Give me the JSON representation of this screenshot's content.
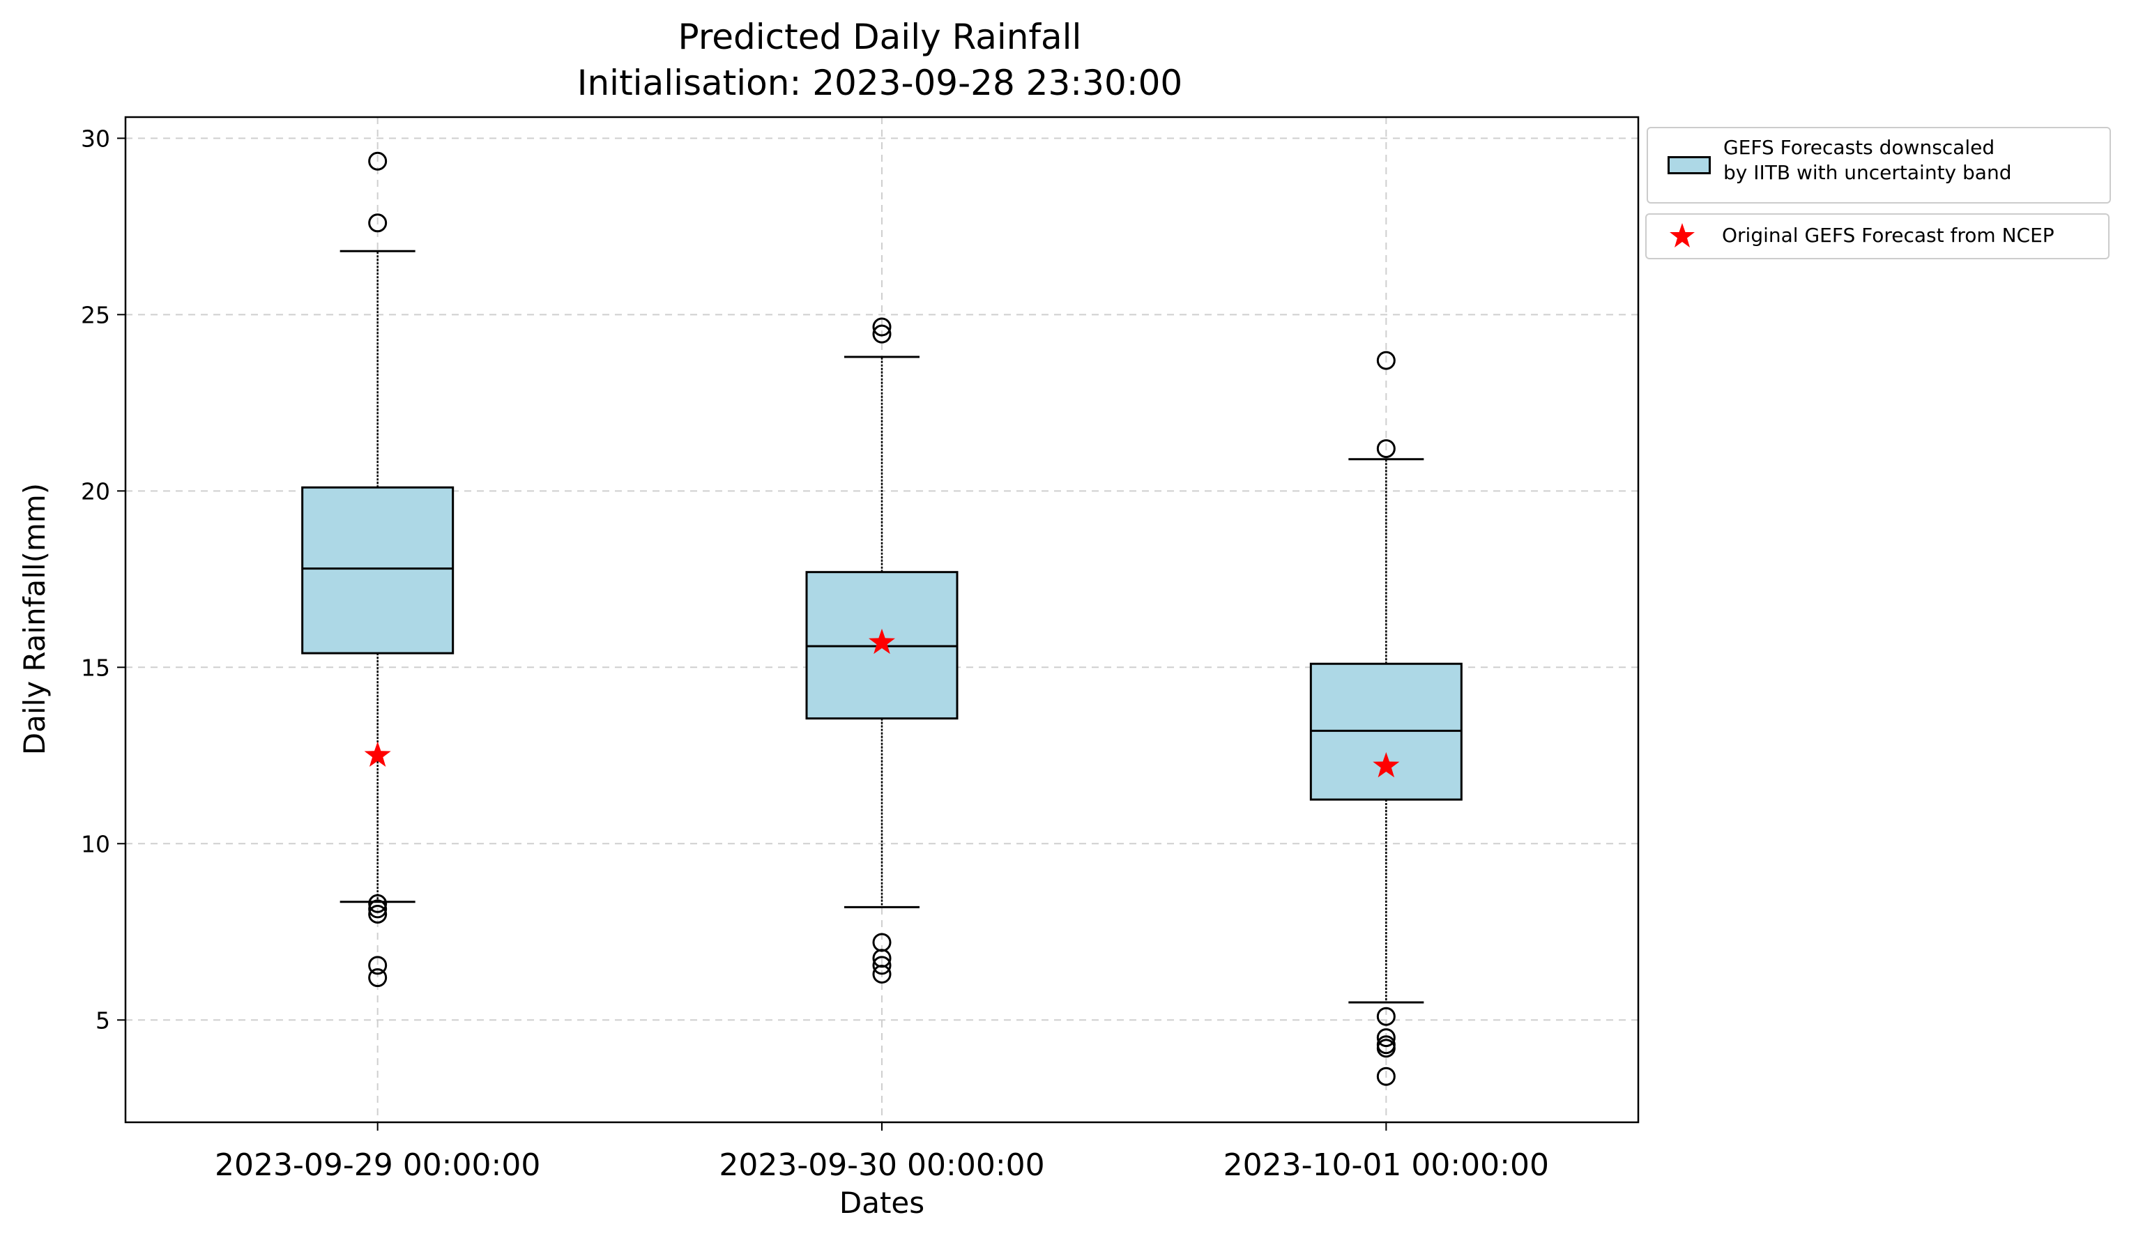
{
  "chart_data": {
    "type": "box",
    "title": "Predicted Daily Rainfall",
    "subtitle": "Initialisation: 2023-09-28 23:30:00",
    "xlabel": "Dates",
    "ylabel": "Daily Rainfall(mm)",
    "ylim": [
      2.1,
      30.6
    ],
    "yticks": [
      5,
      10,
      15,
      20,
      25,
      30
    ],
    "grid": true,
    "legend_placement": "outside upper right",
    "categories": [
      "2023-09-29 00:00:00",
      "2023-09-30 00:00:00",
      "2023-10-01 00:00:00"
    ],
    "series": [
      {
        "name": "GEFS Forecasts downscaled\nby IITB with uncertainty band",
        "color": "#add8e6",
        "boxes": [
          {
            "whisker_low": 8.35,
            "q1": 15.4,
            "median": 17.8,
            "q3": 20.1,
            "whisker_high": 26.8,
            "outliers": [
              29.35,
              27.6,
              8.3,
              8.15,
              8.0,
              6.55,
              6.2
            ]
          },
          {
            "whisker_low": 8.2,
            "q1": 13.55,
            "median": 15.6,
            "q3": 17.7,
            "whisker_high": 23.8,
            "outliers": [
              24.65,
              24.45,
              7.2,
              6.75,
              6.55,
              6.3
            ]
          },
          {
            "whisker_low": 5.5,
            "q1": 11.25,
            "median": 13.2,
            "q3": 15.1,
            "whisker_high": 20.9,
            "outliers": [
              23.7,
              21.2,
              5.1,
              4.5,
              4.3,
              4.2,
              3.4
            ]
          }
        ]
      },
      {
        "name": "Original GEFS Forecast from NCEP",
        "color": "#ff0000",
        "marker": "star",
        "values": [
          12.5,
          15.7,
          12.2
        ]
      }
    ]
  }
}
